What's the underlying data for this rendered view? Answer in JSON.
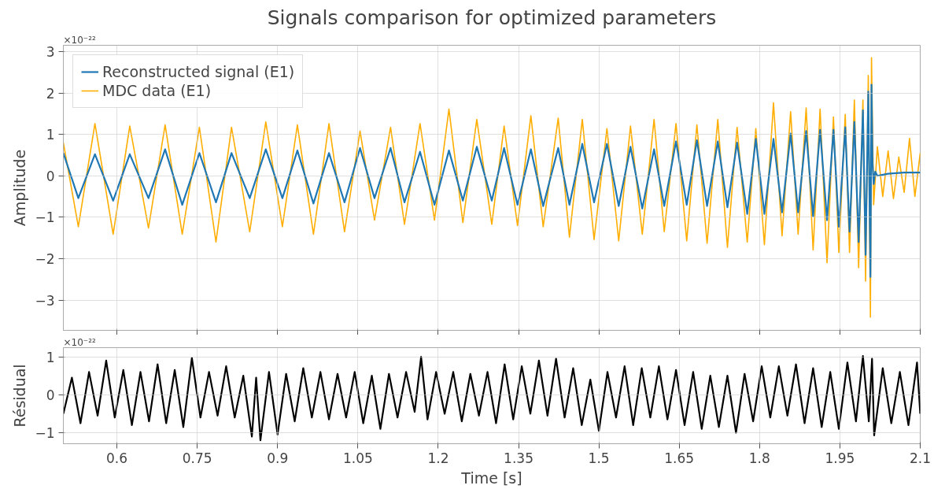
{
  "chart_data": [
    {
      "type": "line",
      "title": "Signals comparison for optimized parameters",
      "ylabel": "Amplitude",
      "annotations": [
        "×10⁻²²"
      ],
      "xlim": [
        0.5,
        2.1
      ],
      "ylim": [
        -3.73,
        3.15
      ],
      "xticks": [
        0.6,
        0.75,
        0.9,
        1.05,
        1.2,
        1.35,
        1.5,
        1.65,
        1.8,
        1.95,
        2.1
      ],
      "yticks": [
        {
          "value": -3,
          "label": "−3"
        },
        {
          "value": -2,
          "label": "−2"
        },
        {
          "value": -1,
          "label": "−1"
        },
        0,
        1,
        2,
        3
      ],
      "tick_labels": "y",
      "grid": true,
      "legend": "top left",
      "series": [
        {
          "name": "Reconstructed signal (E1)",
          "color": "#1f77b4",
          "x": [
            0.5,
            0.528,
            0.559,
            0.593,
            0.624,
            0.659,
            0.69,
            0.722,
            0.754,
            0.785,
            0.814,
            0.848,
            0.878,
            0.909,
            0.937,
            0.967,
            0.996,
            1.025,
            1.054,
            1.081,
            1.111,
            1.137,
            1.166,
            1.193,
            1.22,
            1.246,
            1.272,
            1.3,
            1.323,
            1.348,
            1.373,
            1.396,
            1.424,
            1.445,
            1.469,
            1.491,
            1.515,
            1.537,
            1.559,
            1.581,
            1.603,
            1.622,
            1.644,
            1.664,
            1.683,
            1.702,
            1.722,
            1.74,
            1.758,
            1.777,
            1.793,
            1.809,
            1.826,
            1.842,
            1.858,
            1.872,
            1.887,
            1.9,
            1.913,
            1.926,
            1.938,
            1.948,
            1.96,
            1.968,
            1.977,
            1.985,
            1.993,
            1.998,
            2.003,
            2.007,
            2.009,
            2.011,
            2.013,
            2.016,
            2.02,
            2.04,
            2.07,
            2.1
          ],
          "values": [
            0.55,
            -0.54,
            0.52,
            -0.6,
            0.52,
            -0.54,
            0.64,
            -0.7,
            0.55,
            -0.64,
            0.55,
            -0.54,
            0.64,
            -0.54,
            0.61,
            -0.67,
            0.55,
            -0.64,
            0.67,
            -0.54,
            0.67,
            -0.64,
            0.58,
            -0.7,
            0.61,
            -0.6,
            0.7,
            -0.6,
            0.67,
            -0.7,
            0.64,
            -0.73,
            0.67,
            -0.7,
            0.77,
            -0.64,
            0.77,
            -0.73,
            0.7,
            -0.79,
            0.64,
            -0.73,
            0.83,
            -0.7,
            0.86,
            -0.73,
            0.83,
            -0.76,
            0.8,
            -0.92,
            0.89,
            -0.92,
            0.89,
            -0.88,
            1.02,
            -0.88,
            1.08,
            -0.98,
            1.11,
            -1.07,
            1.11,
            -1.23,
            1.17,
            -1.35,
            1.3,
            -1.6,
            1.58,
            -1.91,
            2.03,
            -2.44,
            2.2,
            0.3,
            -0.2,
            0.1,
            0.0,
            0.05,
            0.08,
            0.08
          ]
        },
        {
          "name": "MDC data (E1)",
          "color": "#ffae00",
          "x": [
            0.5,
            0.528,
            0.559,
            0.593,
            0.624,
            0.659,
            0.69,
            0.722,
            0.754,
            0.785,
            0.814,
            0.848,
            0.878,
            0.909,
            0.937,
            0.967,
            0.996,
            1.025,
            1.054,
            1.081,
            1.111,
            1.137,
            1.166,
            1.193,
            1.22,
            1.246,
            1.272,
            1.3,
            1.323,
            1.348,
            1.373,
            1.396,
            1.424,
            1.445,
            1.469,
            1.491,
            1.515,
            1.537,
            1.559,
            1.581,
            1.603,
            1.622,
            1.644,
            1.664,
            1.683,
            1.702,
            1.722,
            1.74,
            1.758,
            1.777,
            1.793,
            1.809,
            1.826,
            1.842,
            1.858,
            1.872,
            1.887,
            1.9,
            1.913,
            1.926,
            1.938,
            1.948,
            1.96,
            1.968,
            1.977,
            1.985,
            1.993,
            1.998,
            2.003,
            2.007,
            2.009,
            2.013,
            2.02,
            2.03,
            2.04,
            2.05,
            2.06,
            2.07,
            2.08,
            2.09,
            2.1
          ],
          "values": [
            0.8,
            -1.23,
            1.26,
            -1.41,
            1.2,
            -1.26,
            1.23,
            -1.41,
            1.17,
            -1.6,
            1.17,
            -1.35,
            1.3,
            -1.23,
            1.23,
            -1.41,
            1.26,
            -1.35,
            1.08,
            -1.07,
            1.17,
            -1.17,
            1.26,
            -1.07,
            1.61,
            -1.13,
            1.36,
            -1.17,
            1.2,
            -1.2,
            1.45,
            -1.23,
            1.39,
            -1.48,
            1.36,
            -1.54,
            1.14,
            -1.57,
            1.2,
            -1.41,
            1.36,
            -1.35,
            1.26,
            -1.57,
            1.23,
            -1.63,
            1.36,
            -1.73,
            1.17,
            -1.6,
            1.14,
            -1.66,
            1.76,
            -1.45,
            1.55,
            -1.41,
            1.64,
            -1.79,
            1.61,
            -2.1,
            1.42,
            -1.85,
            1.48,
            -1.85,
            1.83,
            -2.22,
            1.83,
            -2.54,
            2.42,
            -3.41,
            2.85,
            -0.7,
            0.7,
            -0.5,
            0.6,
            -0.55,
            0.45,
            -0.4,
            0.9,
            -0.5,
            0.55
          ]
        }
      ]
    },
    {
      "type": "line",
      "xlabel": "Time [s]",
      "ylabel": "Résidual",
      "annotations": [
        "×10⁻²²"
      ],
      "xlim": [
        0.5,
        2.1
      ],
      "ylim": [
        -1.29,
        1.24
      ],
      "xticks": [
        0.6,
        0.75,
        0.9,
        1.05,
        1.2,
        1.35,
        1.5,
        1.65,
        1.8,
        1.95,
        2.1
      ],
      "yticks": [
        {
          "value": -1,
          "label": "−1"
        },
        0,
        1
      ],
      "grid": true,
      "series": [
        {
          "color": "#000000",
          "x": [
            0.5,
            0.516,
            0.532,
            0.548,
            0.564,
            0.58,
            0.596,
            0.612,
            0.628,
            0.644,
            0.66,
            0.676,
            0.692,
            0.708,
            0.724,
            0.74,
            0.756,
            0.772,
            0.788,
            0.804,
            0.82,
            0.836,
            0.852,
            0.86,
            0.868,
            0.884,
            0.9,
            0.916,
            0.932,
            0.948,
            0.964,
            0.98,
            0.996,
            1.012,
            1.028,
            1.044,
            1.06,
            1.076,
            1.092,
            1.108,
            1.124,
            1.14,
            1.156,
            1.168,
            1.18,
            1.196,
            1.212,
            1.228,
            1.244,
            1.26,
            1.276,
            1.292,
            1.308,
            1.324,
            1.34,
            1.356,
            1.372,
            1.388,
            1.404,
            1.42,
            1.436,
            1.452,
            1.468,
            1.484,
            1.5,
            1.516,
            1.532,
            1.548,
            1.564,
            1.58,
            1.596,
            1.612,
            1.628,
            1.644,
            1.66,
            1.676,
            1.692,
            1.708,
            1.724,
            1.74,
            1.756,
            1.772,
            1.788,
            1.804,
            1.82,
            1.836,
            1.852,
            1.868,
            1.884,
            1.9,
            1.916,
            1.932,
            1.948,
            1.964,
            1.98,
            1.993,
            2.004,
            2.01,
            2.014,
            2.03,
            2.046,
            2.062,
            2.078,
            2.094,
            2.1
          ],
          "values": [
            -0.5,
            0.45,
            -0.75,
            0.6,
            -0.55,
            0.9,
            -0.6,
            0.65,
            -0.8,
            0.6,
            -0.7,
            0.8,
            -0.75,
            0.65,
            -0.85,
            0.97,
            -0.6,
            0.6,
            -0.55,
            0.75,
            -0.6,
            0.5,
            -1.1,
            0.45,
            -1.2,
            0.6,
            -1.05,
            0.55,
            -0.7,
            0.7,
            -0.6,
            0.6,
            -0.65,
            0.55,
            -0.6,
            0.6,
            -0.75,
            0.5,
            -0.9,
            0.55,
            -0.6,
            0.6,
            -0.45,
            1.0,
            -0.65,
            0.6,
            -0.5,
            0.6,
            -0.7,
            0.55,
            -0.55,
            0.6,
            -0.75,
            0.8,
            -0.65,
            0.75,
            -0.5,
            0.9,
            -0.55,
            0.95,
            -0.6,
            0.7,
            -0.8,
            0.4,
            -0.95,
            0.6,
            -0.6,
            0.75,
            -0.8,
            0.7,
            -0.6,
            0.75,
            -0.65,
            0.65,
            -0.8,
            0.6,
            -0.9,
            0.5,
            -0.85,
            0.5,
            -1.0,
            0.55,
            -0.7,
            0.75,
            -0.6,
            0.75,
            -0.55,
            0.8,
            -0.75,
            0.7,
            -0.85,
            0.6,
            -0.9,
            0.85,
            -0.7,
            1.02,
            -0.7,
            0.95,
            -1.07,
            0.7,
            -0.75,
            0.6,
            -0.8,
            0.85,
            -0.5
          ]
        }
      ]
    }
  ]
}
